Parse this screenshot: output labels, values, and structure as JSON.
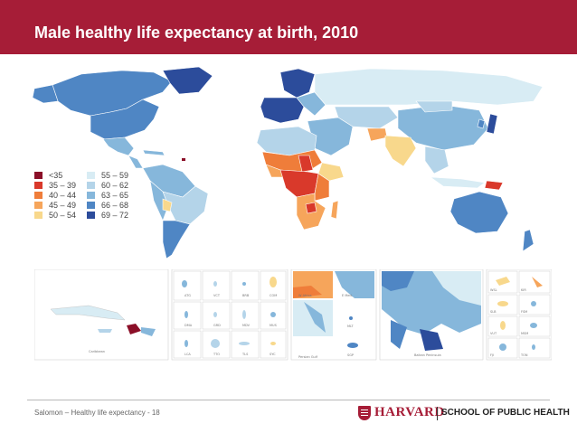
{
  "header": {
    "title": "Male healthy life expectancy at birth, 2010",
    "color": "#a61d37"
  },
  "legend": [
    {
      "label": "<35",
      "color": "#8b0f28"
    },
    {
      "label": "35 – 39",
      "color": "#d9392b"
    },
    {
      "label": "40 – 44",
      "color": "#ef7d3a"
    },
    {
      "label": "45 – 49",
      "color": "#f6a55b"
    },
    {
      "label": "50 – 54",
      "color": "#f8d88c"
    },
    {
      "label": "55 – 59",
      "color": "#d8ecf4"
    },
    {
      "label": "60 – 62",
      "color": "#b4d4e9"
    },
    {
      "label": "63 – 65",
      "color": "#86b7db"
    },
    {
      "label": "66 – 68",
      "color": "#4f86c4"
    },
    {
      "label": "69 – 72",
      "color": "#2c4c9b"
    }
  ],
  "insets": {
    "caribbean": "Caribbean",
    "small_islands": [
      "ATG",
      "VCT",
      "BRB",
      "COM",
      "DMA",
      "GRD",
      "MDV",
      "MUS",
      "LCA",
      "TTO",
      "TLS",
      "SYC"
    ],
    "w_africa": "W Africa",
    "e_med": "E Med.",
    "persian_gulf": "Persian Gulf",
    "mlt": "MLT",
    "sgp": "SGP",
    "balkan": "Balkan Peninsula",
    "pacific": [
      "WSL",
      "KIR",
      "SLB",
      "FSM",
      "VUT",
      "MSM",
      "FJI",
      "TON"
    ]
  },
  "footer": {
    "text": "Salomon – Healthy life expectancy - 18",
    "brand": "HARVARD",
    "school": "SCHOOL OF PUBLIC HEALTH"
  }
}
